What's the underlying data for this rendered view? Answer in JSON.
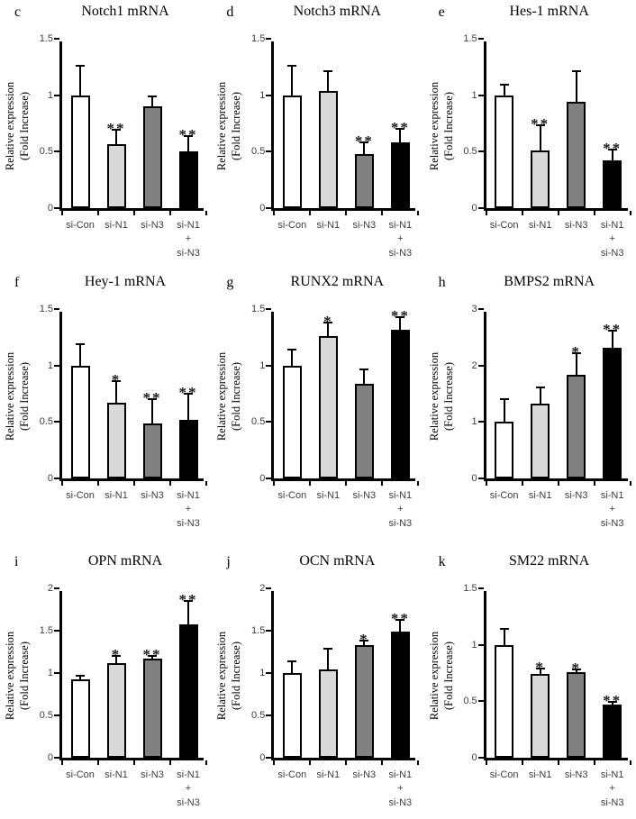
{
  "style": {
    "bar_colors": [
      "#ffffff",
      "#d9d9d9",
      "#808080",
      "#000000"
    ],
    "axis_color": "#000000",
    "tick_label_color": "#3d3d3d",
    "category_label_color": "#3d3d3d"
  },
  "chart_data": [
    {
      "panel_label": "c",
      "type": "bar",
      "title": "Notch1 mRNA",
      "ylabel": "Relative expression\n(Fold Increase)",
      "categories": [
        "si-Con",
        "si-N1",
        "si-N3",
        "si-N1\n+\nsi-N3"
      ],
      "values": [
        1.0,
        0.57,
        0.9,
        0.5
      ],
      "errors": [
        0.27,
        0.13,
        0.1,
        0.15
      ],
      "significance": [
        "",
        "**",
        "",
        "**"
      ],
      "ylim": [
        0,
        1.5
      ],
      "yticks": [
        0,
        0.5,
        1,
        1.5
      ]
    },
    {
      "panel_label": "d",
      "type": "bar",
      "title": "Notch3 mRNA",
      "ylabel": "Relative expression\n(Fold Increase)",
      "categories": [
        "si-Con",
        "si-N1",
        "si-N3",
        "si-N1\n+\nsi-N3"
      ],
      "values": [
        1.0,
        1.04,
        0.48,
        0.58
      ],
      "errors": [
        0.27,
        0.18,
        0.11,
        0.13
      ],
      "significance": [
        "",
        "",
        "**",
        "**"
      ],
      "ylim": [
        0,
        1.5
      ],
      "yticks": [
        0,
        0.5,
        1,
        1.5
      ]
    },
    {
      "panel_label": "e",
      "type": "bar",
      "title": "Hes-1 mRNA",
      "ylabel": "Relative expression\n(Fold Increase)",
      "categories": [
        "si-Con",
        "si-N1",
        "si-N3",
        "si-N1\n+\nsi-N3"
      ],
      "values": [
        1.0,
        0.51,
        0.94,
        0.42
      ],
      "errors": [
        0.1,
        0.23,
        0.28,
        0.11
      ],
      "significance": [
        "",
        "**",
        "",
        "**"
      ],
      "ylim": [
        0,
        1.5
      ],
      "yticks": [
        0,
        0.5,
        1,
        1.5
      ]
    },
    {
      "panel_label": "f",
      "type": "bar",
      "title": "Hey-1 mRNA",
      "ylabel": "Relative expression\n(Fold Increase)",
      "categories": [
        "si-Con",
        "si-N1",
        "si-N3",
        "si-N1\n+\nsi-N3"
      ],
      "values": [
        1.0,
        0.67,
        0.49,
        0.52
      ],
      "errors": [
        0.2,
        0.2,
        0.22,
        0.24
      ],
      "significance": [
        "",
        "*",
        "**",
        "**"
      ],
      "ylim": [
        0,
        1.5
      ],
      "yticks": [
        0,
        0.5,
        1,
        1.5
      ]
    },
    {
      "panel_label": "g",
      "type": "bar",
      "title": "RUNX2 mRNA",
      "ylabel": "Relative expression\n(Fold Increase)",
      "categories": [
        "si-Con",
        "si-N1",
        "si-N3",
        "si-N1\n+\nsi-N3"
      ],
      "values": [
        1.0,
        1.26,
        0.84,
        1.32
      ],
      "errors": [
        0.15,
        0.13,
        0.13,
        0.12
      ],
      "significance": [
        "",
        "*",
        "",
        "**"
      ],
      "ylim": [
        0,
        1.5
      ],
      "yticks": [
        0,
        0.5,
        1,
        1.5
      ]
    },
    {
      "panel_label": "h",
      "type": "bar",
      "title": "BMPS2 mRNA",
      "ylabel": "Relative expression\n(Fold Increase)",
      "categories": [
        "si-Con",
        "si-N1",
        "si-N3",
        "si-N1\n+\nsi-N3"
      ],
      "values": [
        1.0,
        1.32,
        1.84,
        2.31
      ],
      "errors": [
        0.42,
        0.31,
        0.39,
        0.33
      ],
      "significance": [
        "",
        "",
        "*",
        "**"
      ],
      "ylim": [
        0,
        3
      ],
      "yticks": [
        0,
        1,
        2,
        3
      ]
    },
    {
      "panel_label": "i",
      "type": "bar",
      "title": "OPN mRNA",
      "ylabel": "Relative expression\n(Fold Increase)",
      "categories": [
        "si-Con",
        "si-N1",
        "si-N3",
        "si-N1\n+\nsi-N3"
      ],
      "values": [
        0.93,
        1.12,
        1.17,
        1.57
      ],
      "errors": [
        0.05,
        0.09,
        0.04,
        0.29
      ],
      "significance": [
        "",
        "*",
        "**",
        "**"
      ],
      "ylim": [
        0,
        2
      ],
      "yticks": [
        0,
        0.5,
        1,
        1.5,
        2
      ]
    },
    {
      "panel_label": "j",
      "type": "bar",
      "title": "OCN mRNA",
      "ylabel": "Relative expression\n(Fold Increase)",
      "categories": [
        "si-Con",
        "si-N1",
        "si-N3",
        "si-N1\n+\nsi-N3"
      ],
      "values": [
        1.0,
        1.04,
        1.33,
        1.49
      ],
      "errors": [
        0.15,
        0.26,
        0.06,
        0.15
      ],
      "significance": [
        "",
        "",
        "*",
        "**"
      ],
      "ylim": [
        0,
        2
      ],
      "yticks": [
        0,
        0.5,
        1,
        1.5,
        2
      ]
    },
    {
      "panel_label": "k",
      "type": "bar",
      "title": "SM22 mRNA",
      "ylabel": "Relative expression\n(Fold Increase)",
      "categories": [
        "si-Con",
        "si-N1",
        "si-N3",
        "si-N1\n+\nsi-N3"
      ],
      "values": [
        1.0,
        0.74,
        0.76,
        0.47
      ],
      "errors": [
        0.15,
        0.06,
        0.03,
        0.03
      ],
      "significance": [
        "",
        "*",
        "*",
        "**"
      ],
      "ylim": [
        0,
        1.5
      ],
      "yticks": [
        0,
        0.5,
        1,
        1.5
      ]
    }
  ]
}
